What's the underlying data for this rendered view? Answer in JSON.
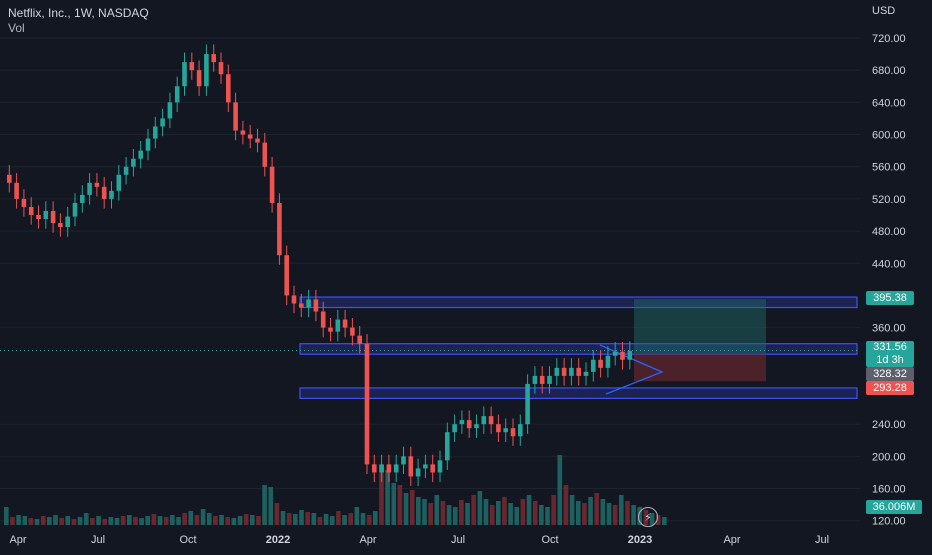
{
  "header": {
    "title": "Netflix, Inc., 1W, NASDAQ",
    "volume_label": "Vol"
  },
  "price_axis": {
    "currency": "USD",
    "ticks": [
      "720.00",
      "680.00",
      "640.00",
      "600.00",
      "560.00",
      "520.00",
      "480.00",
      "440.00",
      "360.00",
      "240.00",
      "200.00",
      "160.00",
      "120.00"
    ]
  },
  "time_axis": {
    "labels": [
      "Apr",
      "Jul",
      "Oct",
      "2022",
      "Apr",
      "Jul",
      "Oct",
      "2023",
      "Apr",
      "Jul"
    ]
  },
  "price_tags": {
    "target": "395.38",
    "last_price": "331.56",
    "countdown": "1d 3h",
    "entry": "328.32",
    "stop": "293.28",
    "volume": "36.006M"
  },
  "icons": {
    "bolt": "lightning-icon"
  },
  "colors": {
    "up": "#26a69a",
    "down": "#ef5350",
    "zone": "#3f51f5",
    "profit": "#1f6f6b",
    "loss": "#7a2a31",
    "background": "#131722"
  },
  "chart_data": {
    "type": "candlestick",
    "title": "Netflix, Inc., 1W, NASDAQ",
    "ylim": [
      110,
      740
    ],
    "zones": [
      {
        "low": 385,
        "high": 398
      },
      {
        "low": 327,
        "high": 340
      },
      {
        "low": 272,
        "high": 285
      }
    ],
    "position": {
      "entry": 328.32,
      "target": 395.38,
      "stop": 293.28
    }
  }
}
